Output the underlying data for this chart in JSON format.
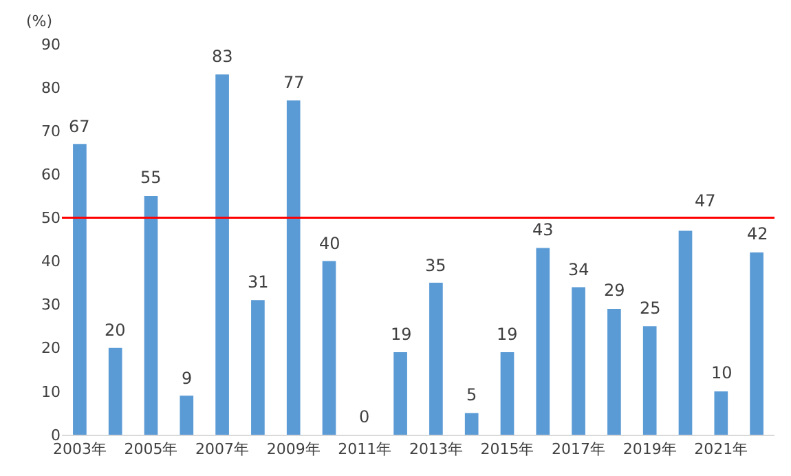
{
  "chart_data": {
    "type": "bar",
    "ylabel": "(%)",
    "categories": [
      "2003年",
      null,
      "2005年",
      null,
      "2007年",
      null,
      "2009年",
      null,
      "2011年",
      null,
      "2013年",
      null,
      "2015年",
      null,
      "2017年",
      null,
      "2019年",
      null,
      "2021年",
      null
    ],
    "values": [
      67,
      20,
      55,
      9,
      83,
      31,
      77,
      40,
      0,
      19,
      35,
      5,
      19,
      43,
      34,
      29,
      25,
      47,
      10,
      42
    ],
    "color": "#5b9bd5",
    "ylim": [
      0,
      90
    ],
    "yticks": [
      0,
      10,
      20,
      30,
      40,
      50,
      60,
      70,
      80,
      90
    ],
    "data_labels": true,
    "grid": false,
    "ref_lines": [
      {
        "axis": "y",
        "value": 50,
        "label": null,
        "color": "#ff0000",
        "line_style": "solid"
      }
    ]
  }
}
